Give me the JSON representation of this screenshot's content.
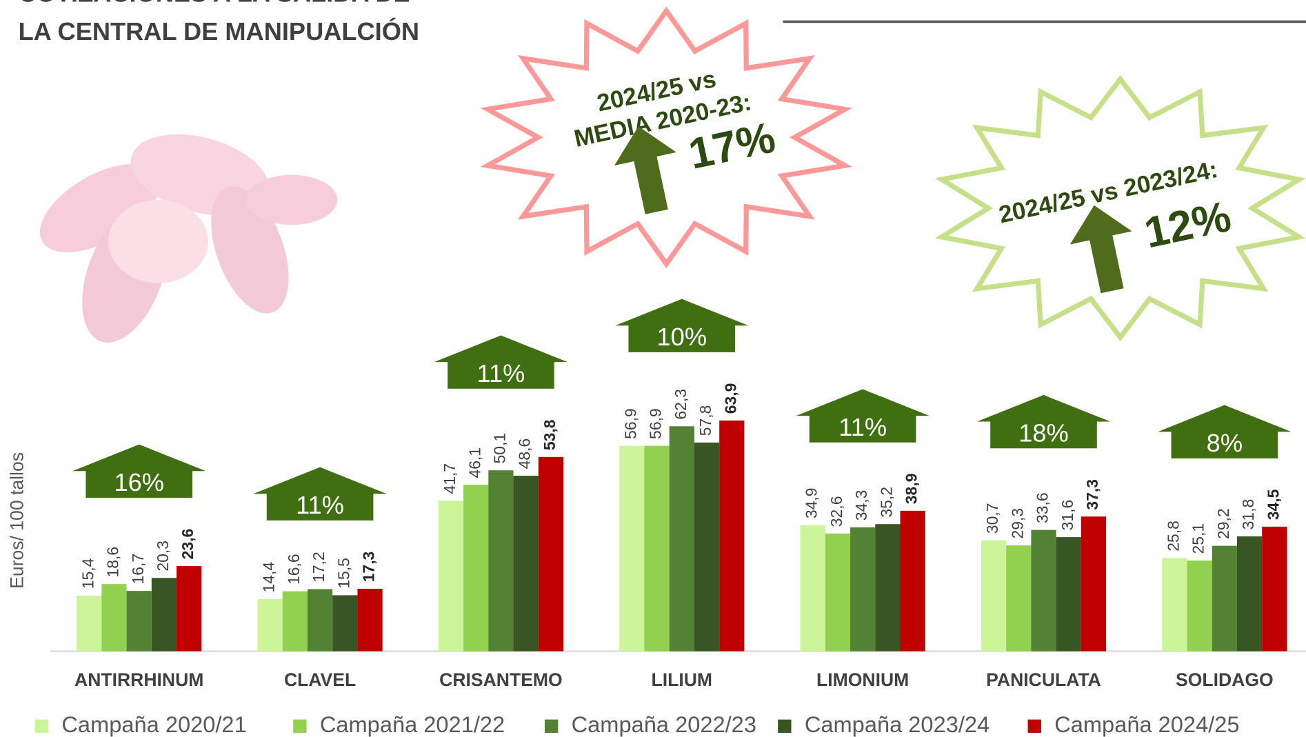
{
  "chart_data": {
    "type": "bar",
    "title": [
      "COTIZACIONES A LA SALIDA DE",
      "LA CENTRAL DE MANIPUALCIÓN"
    ],
    "y_label": "Euros/ 100 tallos",
    "categories": [
      "ANTIRRHINUM",
      "CLAVEL",
      "CRISANTEMO",
      "LILIUM",
      "LIMONIUM",
      "PANICULATA",
      "SOLIDAGO"
    ],
    "series": [
      {
        "name": "Campaña 2020/21",
        "color": "#ccf59a",
        "values": [
          15.4,
          14.4,
          41.7,
          56.9,
          34.9,
          30.7,
          25.8
        ],
        "value_labels": [
          "15,4",
          "14,4",
          "41,7",
          "56,9",
          "34,9",
          "30,7",
          "25,8"
        ]
      },
      {
        "name": "Campaña 2021/22",
        "color": "#92d050",
        "values": [
          18.6,
          16.6,
          46.1,
          56.9,
          32.6,
          29.3,
          25.1
        ],
        "value_labels": [
          "18,6",
          "16,6",
          "46,1",
          "56,9",
          "32,6",
          "29,3",
          "25,1"
        ]
      },
      {
        "name": "Campaña 2022/23",
        "color": "#548235",
        "values": [
          16.7,
          17.2,
          50.1,
          62.3,
          34.3,
          33.6,
          29.2
        ],
        "value_labels": [
          "16,7",
          "17,2",
          "50,1",
          "62,3",
          "34,3",
          "33,6",
          "29,2"
        ]
      },
      {
        "name": "Campaña 2023/24",
        "color": "#375623",
        "values": [
          20.3,
          15.5,
          48.6,
          57.8,
          35.2,
          31.6,
          31.8
        ],
        "value_labels": [
          "20,3",
          "15,5",
          "48,6",
          "57,8",
          "35,2",
          "31,6",
          "31,8"
        ]
      },
      {
        "name": "Campaña 2024/25",
        "color": "#c00000",
        "values": [
          23.6,
          17.3,
          53.8,
          63.9,
          38.9,
          37.3,
          34.5
        ],
        "value_labels": [
          "23,6",
          "17,3",
          "53,8",
          "63,9",
          "38,9",
          "37,3",
          "34,5"
        ]
      }
    ],
    "increases": [
      "16%",
      "11%",
      "11%",
      "10%",
      "11%",
      "18%",
      "8%"
    ],
    "starbursts": [
      {
        "lines": [
          "2024/25  vs",
          "MEDIA 2020-23:"
        ],
        "value": "17%",
        "color": "#ff9999"
      },
      {
        "lines": [
          "2024/25 vs 2023/24:"
        ],
        "value": "12%",
        "color": "#c6e08a"
      }
    ],
    "ylim": [
      0,
      70
    ],
    "legend": "bottom"
  }
}
